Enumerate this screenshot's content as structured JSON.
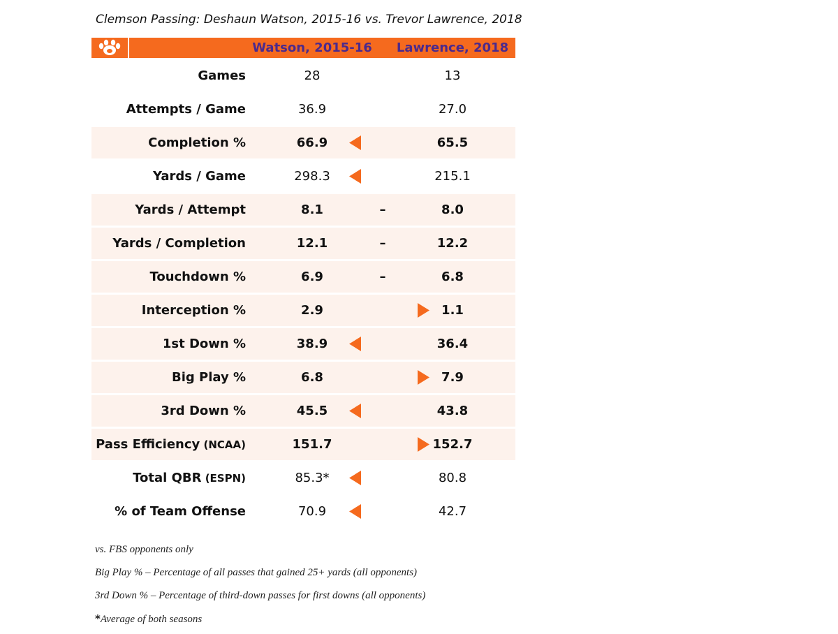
{
  "colors": {
    "orange": "#f56a1e",
    "purple": "#4b2a8c",
    "row_shade": "#fdf2ec"
  },
  "chart_data": {
    "type": "table",
    "title": "Clemson Passing: Deshaun Watson, 2015-16 vs. Trevor Lawrence, 2018",
    "columns": [
      "Watson, 2015-16",
      "Lawrence, 2018"
    ],
    "logo": "paw-icon",
    "rows": [
      {
        "label": "Games",
        "sub": "",
        "watson": "28",
        "lawrence": "13",
        "marker": "none",
        "shaded": false,
        "bold_label": true,
        "bold_values": false
      },
      {
        "label": "Attempts / Game",
        "sub": "",
        "watson": "36.9",
        "lawrence": "27.0",
        "marker": "none",
        "shaded": false,
        "bold_label": true,
        "bold_values": false
      },
      {
        "label": "Completion %",
        "sub": "",
        "watson": "66.9",
        "lawrence": "65.5",
        "marker": "left",
        "shaded": true,
        "bold_label": true,
        "bold_values": true
      },
      {
        "label": "Yards / Game",
        "sub": "",
        "watson": "298.3",
        "lawrence": "215.1",
        "marker": "left",
        "shaded": false,
        "bold_label": true,
        "bold_values": false
      },
      {
        "label": "Yards / Attempt",
        "sub": "",
        "watson": "8.1",
        "lawrence": "8.0",
        "marker": "dash",
        "shaded": true,
        "bold_label": true,
        "bold_values": true
      },
      {
        "label": "Yards / Completion",
        "sub": "",
        "watson": "12.1",
        "lawrence": "12.2",
        "marker": "dash",
        "shaded": true,
        "bold_label": true,
        "bold_values": true
      },
      {
        "label": "Touchdown %",
        "sub": "",
        "watson": "6.9",
        "lawrence": "6.8",
        "marker": "dash",
        "shaded": true,
        "bold_label": true,
        "bold_values": true
      },
      {
        "label": "Interception %",
        "sub": "",
        "watson": "2.9",
        "lawrence": "1.1",
        "marker": "right",
        "shaded": true,
        "bold_label": true,
        "bold_values": true,
        "heavy": true
      },
      {
        "label": "1st Down %",
        "sub": "",
        "watson": "38.9",
        "lawrence": "36.4",
        "marker": "left",
        "shaded": true,
        "bold_label": true,
        "bold_values": true
      },
      {
        "label": "Big Play %",
        "sub": "",
        "watson": "6.8",
        "lawrence": "7.9",
        "marker": "right",
        "shaded": true,
        "bold_label": true,
        "bold_values": true,
        "heavy": true
      },
      {
        "label": "3rd Down %",
        "sub": "",
        "watson": "45.5",
        "lawrence": "43.8",
        "marker": "left",
        "shaded": true,
        "bold_label": true,
        "bold_values": true
      },
      {
        "label": "Pass Efficiency",
        "sub": "(NCAA)",
        "watson": "151.7",
        "lawrence": "152.7",
        "marker": "right",
        "shaded": true,
        "bold_label": true,
        "bold_values": true,
        "heavy": true
      },
      {
        "label": "Total QBR",
        "sub": "(ESPN)",
        "watson": "85.3*",
        "lawrence": "80.8",
        "marker": "left",
        "shaded": false,
        "bold_label": true,
        "bold_values": false
      },
      {
        "label": "% of Team Offense",
        "sub": "",
        "watson": "70.9",
        "lawrence": "42.7",
        "marker": "left",
        "shaded": false,
        "bold_label": true,
        "bold_values": false
      }
    ],
    "notes": [
      {
        "star": "",
        "text": "vs. FBS opponents only"
      },
      {
        "star": "",
        "text": "Big Play % – Percentage of all passes that gained 25+ yards (all opponents)"
      },
      {
        "star": "",
        "text": "3rd Down % – Percentage of third-down passes for first downs (all opponents)"
      },
      {
        "star": "*",
        "text": "Average of both seasons"
      }
    ],
    "dash_symbol": "–"
  }
}
